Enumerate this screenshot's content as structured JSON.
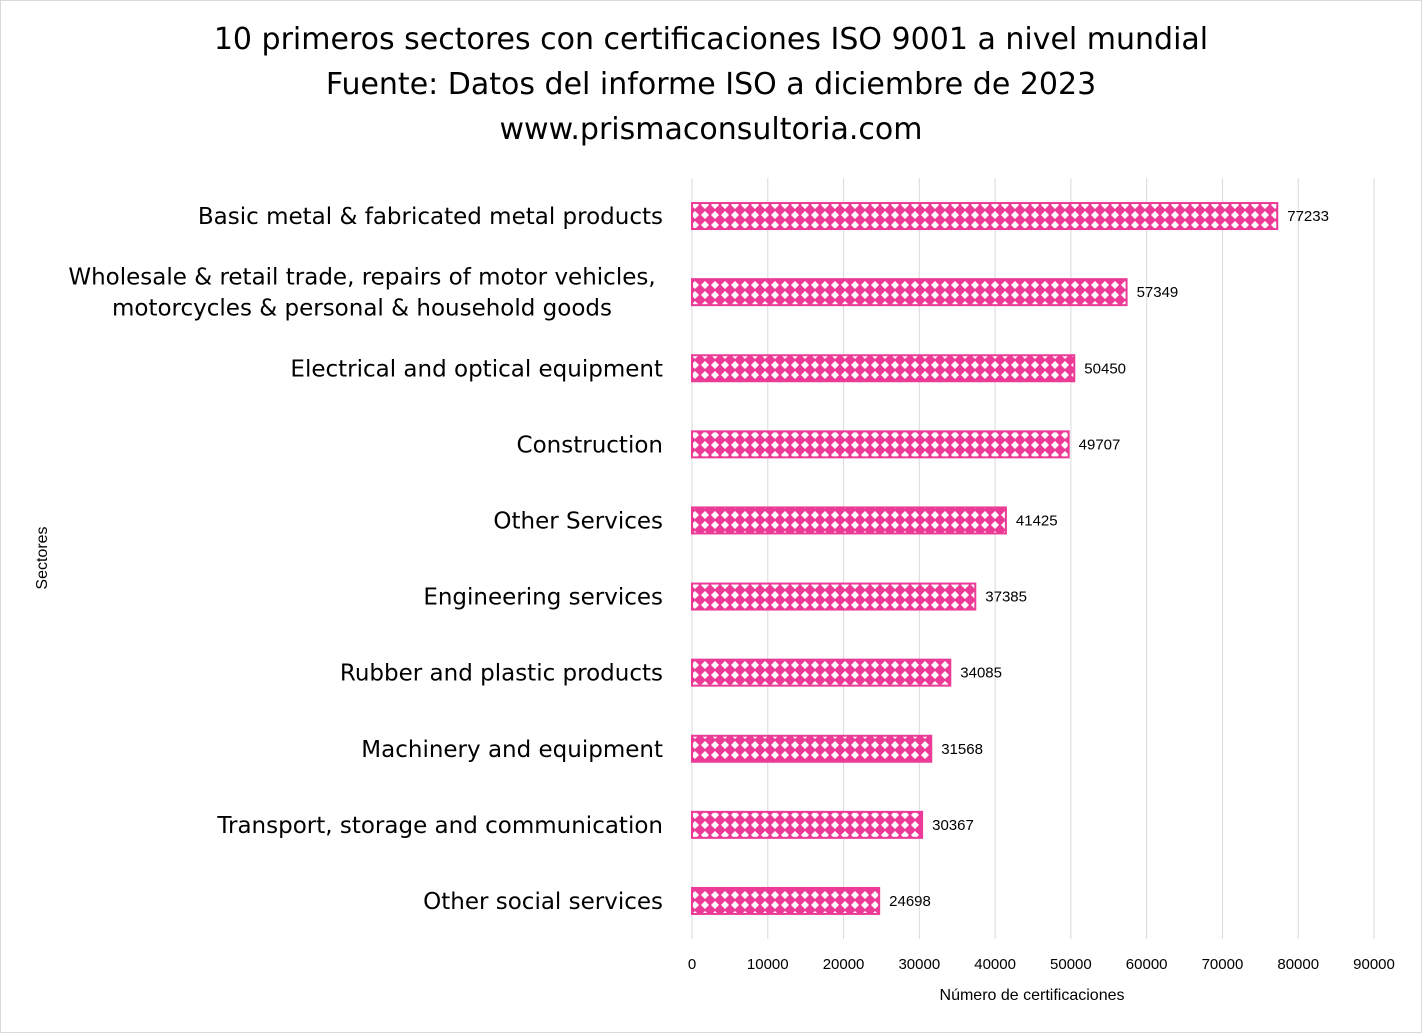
{
  "chart_data": {
    "type": "bar",
    "orientation": "horizontal",
    "title": [
      "10 primeros sectores con certificaciones ISO 9001 a nivel mundial",
      "Fuente: Datos del informe ISO  a diciembre de 2023",
      "www.prismaconsultoria.com"
    ],
    "xlabel": "Número de certificaciones",
    "ylabel": "Sectores",
    "xlim": [
      0,
      90000
    ],
    "xticks": [
      "0",
      "10000",
      "20000",
      "30000",
      "40000",
      "50000",
      "60000",
      "70000",
      "80000",
      "90000"
    ],
    "grid": "vertical",
    "legend": "none",
    "bar_color": "#ec3b96",
    "categories": [
      [
        "Basic metal & fabricated metal products"
      ],
      [
        "Wholesale & retail trade, repairs of motor vehicles,",
        "motorcycles & personal & household goods"
      ],
      [
        "Electrical and optical equipment"
      ],
      [
        "Construction"
      ],
      [
        "Other Services"
      ],
      [
        "Engineering services"
      ],
      [
        "Rubber and plastic products"
      ],
      [
        "Machinery and equipment"
      ],
      [
        "Transport, storage and communication"
      ],
      [
        "Other social services"
      ]
    ],
    "values": [
      77233,
      57349,
      50450,
      49707,
      41425,
      37385,
      34085,
      31568,
      30367,
      24698
    ]
  }
}
